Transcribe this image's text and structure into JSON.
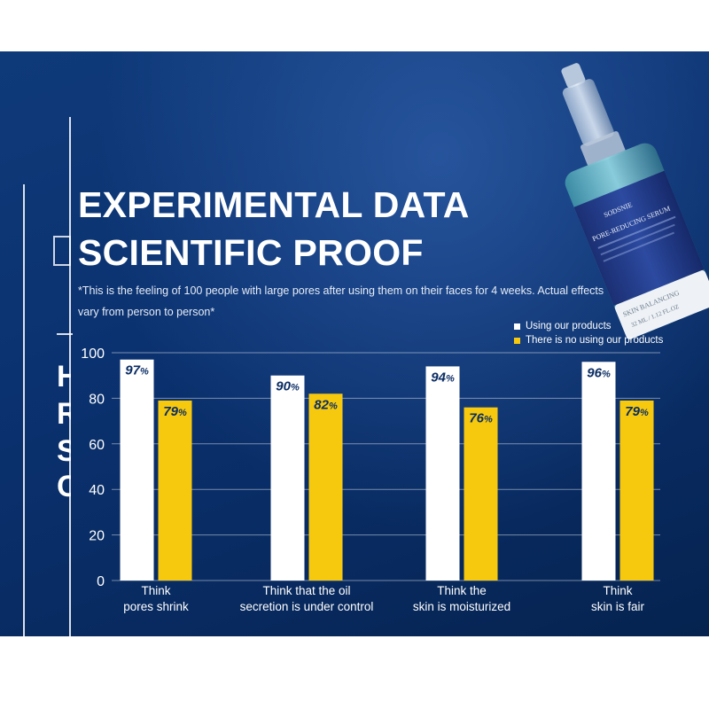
{
  "heading": {
    "line1": "EXPERIMENTAL DATA",
    "line2": "SCIENTIFIC PROOF"
  },
  "note": "*This is the feeling of 100 people with large pores after using them on their faces for 4 weeks. Actual effects vary from person to person*",
  "deco_letters": [
    "H",
    "R",
    "S",
    "C"
  ],
  "product": {
    "brand": "SODSNIE",
    "name": "PORE-REDUCING SERUM",
    "line": "SKIN BALANCING",
    "volume": "32 ML / 1.12 FL.OZ"
  },
  "colors": {
    "background": "#0b3270",
    "bar_ours": "#ffffff",
    "bar_none": "#f6c90e",
    "value_text": "#0b2d63"
  },
  "chart_data": {
    "type": "bar",
    "categories": [
      [
        "Think",
        "pores shrink"
      ],
      [
        "Think that the oil",
        "secretion is under control"
      ],
      [
        "Think the",
        "skin is moisturized"
      ],
      [
        "Think",
        "skin is fair"
      ]
    ],
    "series": [
      {
        "name": "Using our products",
        "values": [
          97,
          90,
          94,
          96
        ],
        "color": "#ffffff"
      },
      {
        "name": "There is no using our products",
        "values": [
          79,
          82,
          76,
          79
        ],
        "color": "#f6c90e"
      }
    ],
    "value_suffix": "%",
    "ylim": [
      0,
      100
    ],
    "yticks": [
      0,
      20,
      40,
      60,
      80,
      100
    ],
    "grid": true,
    "legend_position": "top-right"
  }
}
